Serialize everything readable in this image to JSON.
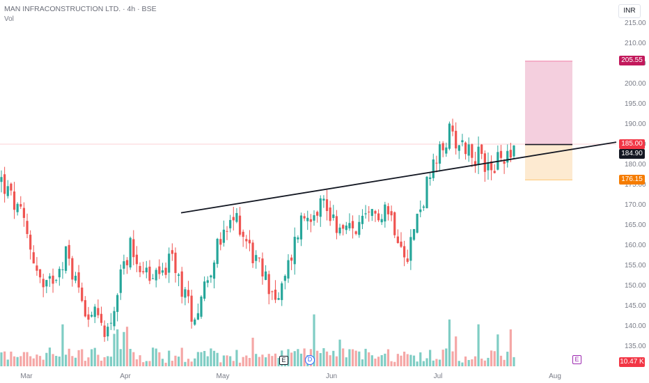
{
  "header": {
    "title": "MAN INFRACONSTRUCTION LTD. · 4h · BSE",
    "volume_label": "Vol",
    "currency": "INR"
  },
  "price_axis": {
    "ticks": [
      "215.00",
      "210.00",
      "205.00",
      "200.00",
      "195.00",
      "190.00",
      "185.00",
      "180.00",
      "175.00",
      "170.00",
      "165.00",
      "160.00",
      "155.00",
      "150.00",
      "145.00",
      "140.00",
      "135.00"
    ]
  },
  "time_axis": {
    "labels": [
      "Mar",
      "Apr",
      "May",
      "Jun",
      "Jul",
      "Aug"
    ]
  },
  "badges": {
    "target": "205.55",
    "current": "185.00",
    "entry": "184.90",
    "stop": "176.15",
    "volume": "10.47 K"
  },
  "events": {
    "earnings_1": "E",
    "dividend": "D",
    "earnings_2": "E"
  },
  "colors": {
    "up": "#26a69a",
    "down": "#ef5350",
    "up_vol": "#7fcdc4",
    "down_vol": "#f5a7a6",
    "target_zone": "#f2c7d8",
    "stop_zone": "#fde8cc",
    "target_badge": "#c2185b",
    "stop_badge": "#f57c00",
    "price_badge": "#f23645"
  },
  "chart_data": {
    "type": "candlestick",
    "title": "MAN INFRACONSTRUCTION LTD. · 4h · BSE",
    "currency": "INR",
    "x_labels": [
      "Mar",
      "Apr",
      "May",
      "Jun",
      "Jul",
      "Aug"
    ],
    "ylim": [
      131,
      218
    ],
    "close_path": [
      {
        "date": "Feb-late",
        "close": 176
      },
      {
        "date": "Mar-early",
        "close": 166
      },
      {
        "date": "Mar-mid",
        "close": 148
      },
      {
        "date": "Mar-mid2",
        "close": 158
      },
      {
        "date": "Mar-late",
        "close": 144
      },
      {
        "date": "Mar-end",
        "close": 139
      },
      {
        "date": "Apr-early",
        "close": 160
      },
      {
        "date": "Apr-early2",
        "close": 151
      },
      {
        "date": "Apr-mid",
        "close": 156
      },
      {
        "date": "Apr-mid2",
        "close": 142
      },
      {
        "date": "Apr-late",
        "close": 158
      },
      {
        "date": "Apr-late2",
        "close": 167
      },
      {
        "date": "May-early",
        "close": 155
      },
      {
        "date": "May-mid",
        "close": 146
      },
      {
        "date": "May-late",
        "close": 166
      },
      {
        "date": "May-end",
        "close": 171
      },
      {
        "date": "Jun-early",
        "close": 163
      },
      {
        "date": "Jun-mid",
        "close": 165
      },
      {
        "date": "Jun-late",
        "close": 170
      },
      {
        "date": "Jun-late2",
        "close": 158
      },
      {
        "date": "Jun-end",
        "close": 176
      },
      {
        "date": "Jul-early",
        "close": 188
      },
      {
        "date": "Jul-mid",
        "close": 183
      },
      {
        "date": "Jul-mid2",
        "close": 179
      },
      {
        "date": "Jul-late",
        "close": 185
      }
    ],
    "trendline": {
      "from": {
        "date": "Apr-late",
        "price": 168
      },
      "to": {
        "date": "Aug",
        "price": 185.5
      }
    },
    "position": {
      "target": 205.55,
      "entry": 184.9,
      "stop": 176.15,
      "last_price": 185.0
    },
    "volume_last": "10.47 K"
  }
}
